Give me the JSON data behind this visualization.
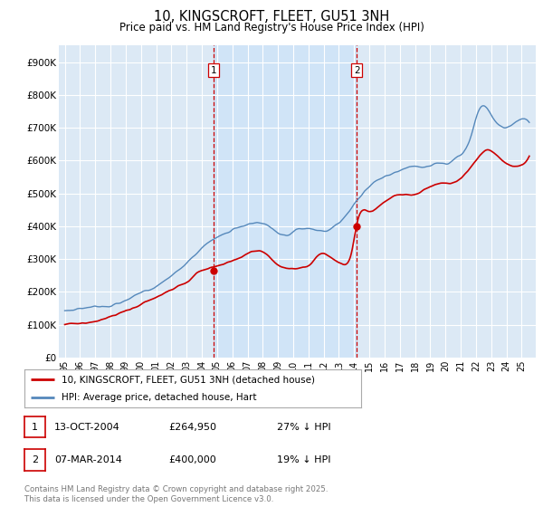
{
  "title": "10, KINGSCROFT, FLEET, GU51 3NH",
  "subtitle": "Price paid vs. HM Land Registry's House Price Index (HPI)",
  "ylim": [
    0,
    950000
  ],
  "yticks": [
    0,
    100000,
    200000,
    300000,
    400000,
    500000,
    600000,
    700000,
    800000,
    900000
  ],
  "ytick_labels": [
    "£0",
    "£100K",
    "£200K",
    "£300K",
    "£400K",
    "£500K",
    "£600K",
    "£700K",
    "£800K",
    "£900K"
  ],
  "bg_color": "#dce9f5",
  "shade_color": "#d0e4f7",
  "grid_color": "#ffffff",
  "line_red_color": "#cc0000",
  "line_blue_color": "#5588bb",
  "purchase1_year": 2004.78,
  "purchase1_price": 264950,
  "purchase1_label": "1",
  "purchase2_year": 2014.18,
  "purchase2_price": 400000,
  "purchase2_label": "2",
  "vline_color": "#cc0000",
  "legend_label_red": "10, KINGSCROFT, FLEET, GU51 3NH (detached house)",
  "legend_label_blue": "HPI: Average price, detached house, Hart",
  "annotation1_date": "13-OCT-2004",
  "annotation1_price": "£264,950",
  "annotation1_hpi": "27% ↓ HPI",
  "annotation2_date": "07-MAR-2014",
  "annotation2_price": "£400,000",
  "annotation2_hpi": "19% ↓ HPI",
  "footer": "Contains HM Land Registry data © Crown copyright and database right 2025.\nThis data is licensed under the Open Government Licence v3.0.",
  "xtick_years": [
    1995,
    1996,
    1997,
    1998,
    1999,
    2000,
    2001,
    2002,
    2003,
    2004,
    2005,
    2006,
    2007,
    2008,
    2009,
    2010,
    2011,
    2012,
    2013,
    2014,
    2015,
    2016,
    2017,
    2018,
    2019,
    2020,
    2021,
    2022,
    2023,
    2024,
    2025
  ],
  "xlim_left": 1994.6,
  "xlim_right": 2025.9
}
